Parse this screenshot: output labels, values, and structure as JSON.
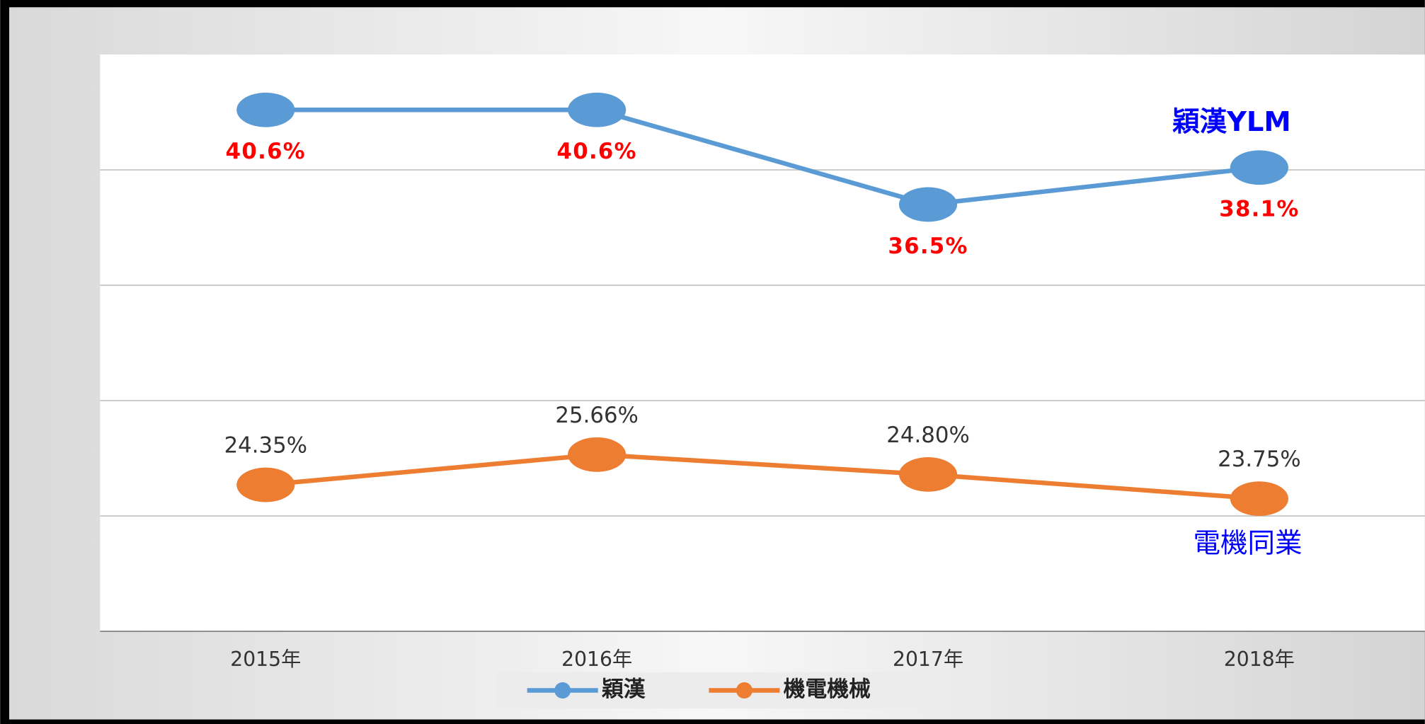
{
  "chart_data": {
    "type": "line",
    "categories": [
      "2015年",
      "2016年",
      "2017年",
      "2018年"
    ],
    "series": [
      {
        "name": "穎漢",
        "color": "#5b9bd5",
        "values": [
          40.6,
          40.6,
          36.5,
          38.1
        ],
        "value_labels": [
          "40.6%",
          "40.6%",
          "36.5%",
          "38.1%"
        ],
        "label_color": "#ff0000"
      },
      {
        "name": "機電機械",
        "color": "#ed7d31",
        "values": [
          24.35,
          25.66,
          24.8,
          23.75
        ],
        "value_labels": [
          "24.35%",
          "25.66%",
          "24.80%",
          "23.75%"
        ],
        "label_color": "#333333"
      }
    ],
    "annotations": [
      "穎漢YLM",
      "電機同業"
    ],
    "ylim": [
      18,
      43
    ],
    "yticks": [
      23,
      28,
      33,
      38
    ],
    "grid": true
  }
}
